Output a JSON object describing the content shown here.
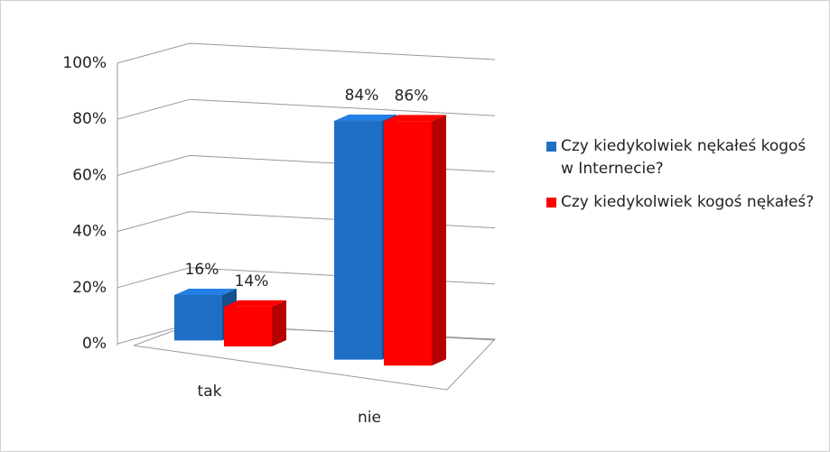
{
  "chart_data": {
    "type": "bar3d",
    "categories": [
      "tak",
      "nie"
    ],
    "series": [
      {
        "name": "Czy kiedykolwiek nękałeś kogoś w Internecie?",
        "color": "#1f6fc6",
        "values": [
          16,
          84
        ],
        "value_labels": [
          "16%",
          "84%"
        ]
      },
      {
        "name": "Czy kiedykolwiek kogoś nękałeś?",
        "color": "#ff0000",
        "values": [
          14,
          86
        ],
        "value_labels": [
          "14%",
          "86%"
        ]
      }
    ],
    "ylim": [
      0,
      100
    ],
    "yticks": [
      {
        "value": 0,
        "label": "0%"
      },
      {
        "value": 20,
        "label": "20%"
      },
      {
        "value": 40,
        "label": "40%"
      },
      {
        "value": 60,
        "label": "60%"
      },
      {
        "value": 80,
        "label": "80%"
      },
      {
        "value": 100,
        "label": "100%"
      }
    ],
    "grid": true
  }
}
